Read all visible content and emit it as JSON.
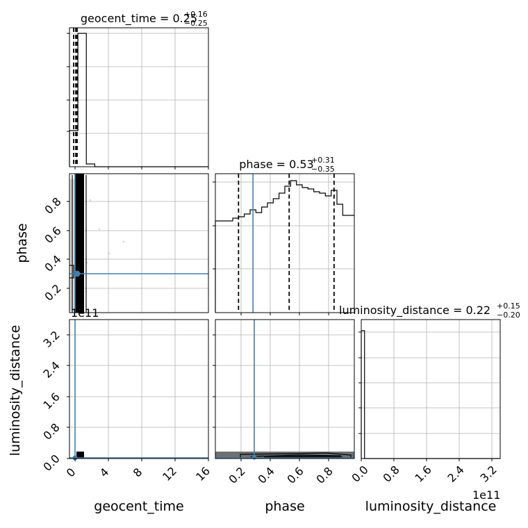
{
  "chart_data": {
    "type": "corner",
    "parameters": [
      "geocent_time",
      "phase",
      "luminosity_distance"
    ],
    "titles": {
      "geocent_time": {
        "label": "geocent_time = 0.25",
        "plus": "+0.16",
        "minus": "−0.25"
      },
      "phase": {
        "label": "phase = 0.53",
        "plus": "+0.31",
        "minus": "−0.35"
      },
      "luminosity_distance": {
        "label": "luminosity_distance = 0.22",
        "plus": "+0.15",
        "minus": "−0.20"
      }
    },
    "axis_labels": {
      "x": [
        "geocent_time",
        "phase",
        "luminosity_distance"
      ],
      "y": [
        "phase",
        "luminosity_distance"
      ]
    },
    "ticks": {
      "geocent_time_x": [
        "0",
        "4",
        "8",
        "12",
        "16"
      ],
      "phase_x": [
        "0.2",
        "0.4",
        "0.6",
        "0.8"
      ],
      "luminosity_distance_x": [
        "0.0",
        "0.8",
        "1.6",
        "2.4",
        "3.2"
      ],
      "phase_y": [
        "0.2",
        "0.4",
        "0.6",
        "0.8"
      ],
      "luminosity_distance_y": [
        "0.0",
        "0.8",
        "1.6",
        "2.4",
        "3.2"
      ]
    },
    "offset_text": {
      "geocent_time_panel": "1e11",
      "luminosity_distance_x": "1e11"
    },
    "ranges": {
      "geocent_time": [
        -0.5,
        16
      ],
      "phase": [
        0.02,
        0.98
      ],
      "luminosity_distance": [
        0,
        3.4
      ]
    },
    "truth_values": {
      "geocent_time": 0,
      "phase": 0.28,
      "luminosity_distance": 0.02
    },
    "quantiles": {
      "geocent_time": [
        0.0,
        0.25,
        0.41
      ],
      "phase": [
        0.18,
        0.53,
        0.84
      ],
      "luminosity_distance": [
        0.02,
        0.22,
        0.37
      ]
    },
    "histograms": {
      "geocent_time": {
        "edges": [
          -0.5,
          0.5,
          1.5,
          2.5,
          3.5,
          16
        ],
        "counts": [
          0.26,
          0.96,
          0.02,
          0.0,
          0.0
        ]
      },
      "phase": {
        "edges": [
          0.02,
          0.06,
          0.1,
          0.14,
          0.18,
          0.22,
          0.26,
          0.3,
          0.34,
          0.38,
          0.42,
          0.46,
          0.5,
          0.54,
          0.58,
          0.62,
          0.66,
          0.7,
          0.74,
          0.78,
          0.82,
          0.86,
          0.9,
          0.94,
          0.98
        ],
        "counts": [
          0.66,
          0.66,
          0.66,
          0.68,
          0.69,
          0.71,
          0.74,
          0.72,
          0.76,
          0.79,
          0.82,
          0.86,
          0.91,
          0.95,
          0.92,
          0.9,
          0.89,
          0.87,
          0.86,
          0.84,
          0.88,
          0.78,
          0.7,
          0.7
        ]
      },
      "luminosity_distance": {
        "edges": [
          0,
          0.08,
          0.16,
          3.4
        ],
        "counts": [
          0.92,
          0.0,
          0.0
        ]
      }
    },
    "grid": true
  }
}
